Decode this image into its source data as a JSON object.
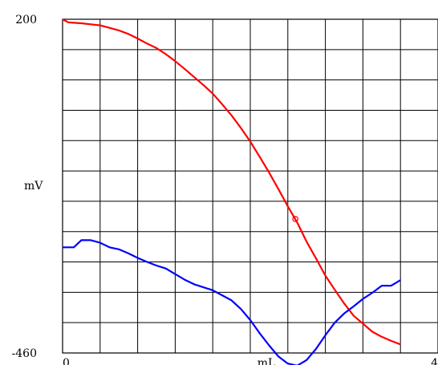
{
  "chart_data": {
    "type": "line",
    "xlabel": "mL",
    "ylabel": "mV",
    "xlim": [
      0,
      4
    ],
    "ylim": [
      -460,
      200
    ],
    "x_tick_labels": [
      {
        "value": 0,
        "label": "0"
      },
      {
        "value": 4,
        "label": "4"
      }
    ],
    "y_tick_labels": [
      {
        "value": 200,
        "label": "200"
      },
      {
        "value": -460,
        "label": "-460"
      }
    ],
    "grid": true,
    "grid_x_divisions": 10,
    "grid_y_divisions": 11,
    "series": [
      {
        "color": "#ff0000",
        "x": [
          0.0,
          0.06,
          0.12,
          0.2,
          0.3,
          0.4,
          0.5,
          0.6,
          0.7,
          0.8,
          0.9,
          1.0,
          1.1,
          1.2,
          1.3,
          1.4,
          1.5,
          1.6,
          1.7,
          1.8,
          1.9,
          2.0,
          2.1,
          2.2,
          2.3,
          2.4,
          2.5,
          2.6,
          2.7,
          2.8,
          2.9,
          3.0,
          3.1,
          3.2,
          3.3,
          3.4,
          3.5,
          3.6
        ],
        "y": [
          200,
          194,
          193,
          192,
          190,
          188,
          183,
          178,
          171,
          162,
          152,
          143,
          131,
          117,
          102,
          86,
          70,
          53,
          32,
          10,
          -15,
          -42,
          -72,
          -103,
          -136,
          -170,
          -202,
          -240,
          -273,
          -307,
          -335,
          -362,
          -386,
          -402,
          -418,
          -428,
          -436,
          -443
        ],
        "marker": {
          "x": 2.48,
          "y": -195
        }
      },
      {
        "color": "#0000ff",
        "x": [
          0.0,
          0.12,
          0.2,
          0.3,
          0.4,
          0.5,
          0.6,
          0.7,
          0.8,
          0.9,
          1.0,
          1.1,
          1.2,
          1.3,
          1.4,
          1.5,
          1.6,
          1.7,
          1.8,
          1.9,
          2.0,
          2.1,
          2.2,
          2.3,
          2.4,
          2.5,
          2.6,
          2.7,
          2.8,
          2.9,
          3.0,
          3.1,
          3.2,
          3.3,
          3.4,
          3.5,
          3.6
        ],
        "y": [
          -251,
          -251,
          -237,
          -237,
          -242,
          -251,
          -255,
          -263,
          -272,
          -280,
          -287,
          -293,
          -304,
          -315,
          -324,
          -330,
          -336,
          -346,
          -356,
          -373,
          -395,
          -421,
          -445,
          -467,
          -481,
          -485,
          -474,
          -452,
          -425,
          -400,
          -382,
          -368,
          -353,
          -341,
          -327,
          -327,
          -316
        ]
      }
    ]
  }
}
